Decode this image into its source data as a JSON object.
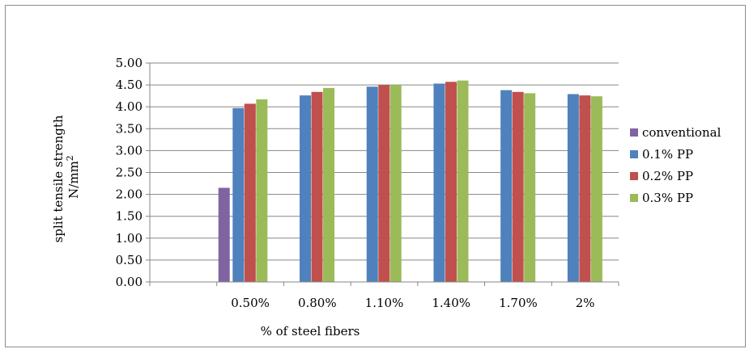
{
  "chart_data": {
    "type": "bar",
    "categories": [
      "",
      "0.50%",
      "0.80%",
      "1.10%",
      "1.40%",
      "1.70%",
      "2%"
    ],
    "series": [
      {
        "name": "conventional",
        "color": "#8064A2",
        "values": [
          null,
          2.15,
          null,
          null,
          null,
          null,
          null
        ]
      },
      {
        "name": "0.1% PP",
        "color": "#4F81BD",
        "values": [
          null,
          3.97,
          4.26,
          4.46,
          4.53,
          4.38,
          4.29
        ]
      },
      {
        "name": "0.2% PP",
        "color": "#C0504D",
        "values": [
          null,
          4.07,
          4.34,
          4.5,
          4.57,
          4.34,
          4.26
        ]
      },
      {
        "name": "0.3% PP",
        "color": "#9BBB59",
        "values": [
          null,
          4.17,
          4.43,
          4.5,
          4.6,
          4.31,
          4.24
        ]
      }
    ],
    "y_ticks": [
      "0.00",
      "0.50",
      "1.00",
      "1.50",
      "2.00",
      "2.50",
      "3.00",
      "3.50",
      "4.00",
      "4.50",
      "5.00"
    ],
    "ylim": [
      0,
      5
    ],
    "xlabel": "% of steel fibers",
    "ylabel_line1": "split tensile strength",
    "ylabel_line2_base": "N/mm",
    "ylabel_line2_sup": "2",
    "grid": true,
    "legend_position": "right"
  }
}
